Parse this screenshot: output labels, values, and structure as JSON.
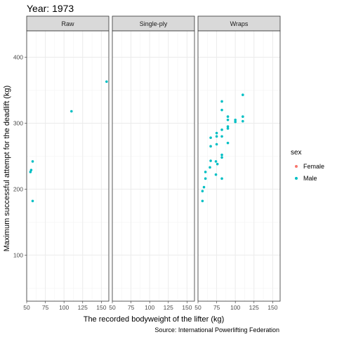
{
  "chart_data": {
    "type": "scatter",
    "title": "Year: 1973",
    "xlabel": "The recorded bodyweight of the lifter (kg)",
    "ylabel": "Maximum successful attempt for the deadlift (kg)",
    "caption": "Source: International Powerlifting Federation",
    "xlim": [
      50,
      160
    ],
    "ylim": [
      30,
      440
    ],
    "x_ticks": [
      50,
      75,
      100,
      125,
      150
    ],
    "y_ticks": [
      100,
      200,
      300,
      400
    ],
    "grid": true,
    "legend": {
      "title": "sex",
      "position": "right",
      "entries": [
        {
          "label": "Female",
          "color": "#F8766D"
        },
        {
          "label": "Male",
          "color": "#00BFC4"
        }
      ]
    },
    "panels": [
      {
        "label": "Raw",
        "series": [
          {
            "name": "Male",
            "points": [
              {
                "x": 55,
                "y": 226
              },
              {
                "x": 56,
                "y": 229
              },
              {
                "x": 58,
                "y": 242
              },
              {
                "x": 58,
                "y": 182
              },
              {
                "x": 110,
                "y": 318
              },
              {
                "x": 157,
                "y": 363
              }
            ]
          }
        ]
      },
      {
        "label": "Single-ply",
        "series": []
      },
      {
        "label": "Wraps",
        "series": [
          {
            "name": "Male",
            "points": [
              {
                "x": 56,
                "y": 182
              },
              {
                "x": 56,
                "y": 197
              },
              {
                "x": 58,
                "y": 203
              },
              {
                "x": 60,
                "y": 216
              },
              {
                "x": 60,
                "y": 226
              },
              {
                "x": 66,
                "y": 233
              },
              {
                "x": 67,
                "y": 243
              },
              {
                "x": 67,
                "y": 265
              },
              {
                "x": 67,
                "y": 278
              },
              {
                "x": 74,
                "y": 222
              },
              {
                "x": 74,
                "y": 242
              },
              {
                "x": 75,
                "y": 268
              },
              {
                "x": 75,
                "y": 280
              },
              {
                "x": 75,
                "y": 285
              },
              {
                "x": 76,
                "y": 238
              },
              {
                "x": 82,
                "y": 216
              },
              {
                "x": 82,
                "y": 248
              },
              {
                "x": 82,
                "y": 252
              },
              {
                "x": 82,
                "y": 280
              },
              {
                "x": 82,
                "y": 290
              },
              {
                "x": 82,
                "y": 320
              },
              {
                "x": 82,
                "y": 333
              },
              {
                "x": 90,
                "y": 270
              },
              {
                "x": 90,
                "y": 292
              },
              {
                "x": 90,
                "y": 295
              },
              {
                "x": 90,
                "y": 305
              },
              {
                "x": 90,
                "y": 310
              },
              {
                "x": 100,
                "y": 302
              },
              {
                "x": 100,
                "y": 305
              },
              {
                "x": 110,
                "y": 303
              },
              {
                "x": 110,
                "y": 310
              },
              {
                "x": 110,
                "y": 343
              }
            ]
          }
        ]
      }
    ]
  }
}
